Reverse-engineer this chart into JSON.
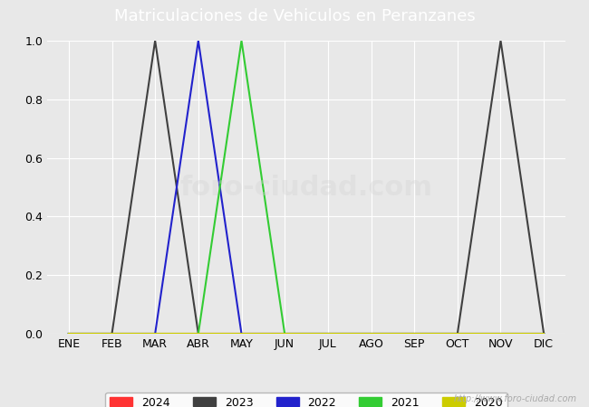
{
  "title": "Matriculaciones de Vehiculos en Peranzanes",
  "title_color": "white",
  "header_color": "#3366cc",
  "background_color": "#e8e8e8",
  "plot_bg_color": "#e8e8e8",
  "months": [
    "ENE",
    "FEB",
    "MAR",
    "ABR",
    "MAY",
    "JUN",
    "JUL",
    "AGO",
    "SEP",
    "OCT",
    "NOV",
    "DIC"
  ],
  "month_indices": [
    1,
    2,
    3,
    4,
    5,
    6,
    7,
    8,
    9,
    10,
    11,
    12
  ],
  "series": [
    {
      "label": "2024",
      "color": "#ff3333",
      "data": [
        [
          1,
          0
        ],
        [
          2,
          0
        ],
        [
          3,
          0
        ],
        [
          4,
          0
        ],
        [
          5,
          0
        ],
        [
          6,
          0
        ],
        [
          7,
          0
        ],
        [
          8,
          0
        ],
        [
          9,
          0
        ],
        [
          10,
          0
        ],
        [
          11,
          0
        ],
        [
          12,
          0
        ]
      ]
    },
    {
      "label": "2023",
      "color": "#404040",
      "data": [
        [
          1,
          0
        ],
        [
          2,
          0
        ],
        [
          3,
          1.0
        ],
        [
          4,
          0
        ],
        [
          5,
          0
        ],
        [
          6,
          0
        ],
        [
          7,
          0
        ],
        [
          8,
          0
        ],
        [
          9,
          0
        ],
        [
          10,
          0
        ],
        [
          11,
          1.0
        ],
        [
          12,
          0
        ]
      ]
    },
    {
      "label": "2022",
      "color": "#2222cc",
      "data": [
        [
          1,
          0
        ],
        [
          2,
          0
        ],
        [
          3,
          0
        ],
        [
          4,
          1.0
        ],
        [
          5,
          0
        ],
        [
          6,
          0
        ],
        [
          7,
          0
        ],
        [
          8,
          0
        ],
        [
          9,
          0
        ],
        [
          10,
          0
        ],
        [
          11,
          0
        ],
        [
          12,
          0
        ]
      ]
    },
    {
      "label": "2021",
      "color": "#33cc33",
      "data": [
        [
          1,
          0
        ],
        [
          2,
          0
        ],
        [
          3,
          0
        ],
        [
          4,
          0
        ],
        [
          5,
          1.0
        ],
        [
          6,
          0
        ],
        [
          7,
          0
        ],
        [
          8,
          0
        ],
        [
          9,
          0
        ],
        [
          10,
          0
        ],
        [
          11,
          0
        ],
        [
          12,
          0
        ]
      ]
    },
    {
      "label": "2020",
      "color": "#cccc00",
      "data": [
        [
          1,
          0
        ],
        [
          2,
          0
        ],
        [
          3,
          0
        ],
        [
          4,
          0
        ],
        [
          5,
          0
        ],
        [
          6,
          0
        ],
        [
          7,
          0
        ],
        [
          8,
          0
        ],
        [
          9,
          0
        ],
        [
          10,
          0
        ],
        [
          11,
          0
        ],
        [
          12,
          0
        ]
      ]
    }
  ],
  "ylim": [
    0.0,
    1.0
  ],
  "yticks": [
    0.0,
    0.2,
    0.4,
    0.6,
    0.8,
    1.0
  ],
  "url_text": "http://www.foro-ciudad.com",
  "legend_pos": "lower center",
  "watermark": "foro-ciudad.com"
}
